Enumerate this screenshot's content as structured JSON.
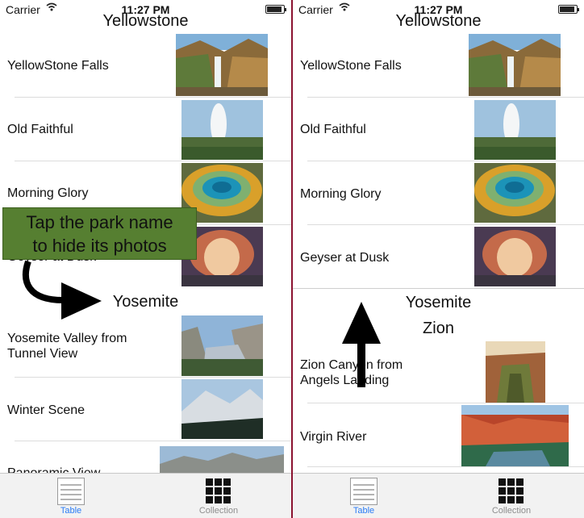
{
  "status_bar": {
    "carrier": "Carrier",
    "time": "11:27 PM"
  },
  "left": {
    "sections": [
      {
        "title": "Yellowstone",
        "items": [
          {
            "label": "YellowStone Falls"
          },
          {
            "label": "Old Faithful"
          },
          {
            "label": "Morning Glory"
          },
          {
            "label": "Geyser at Dusk"
          }
        ]
      },
      {
        "title": "Yosemite",
        "items": [
          {
            "label": "Yosemite Valley from",
            "label2": "Tunnel View"
          },
          {
            "label": "Winter Scene"
          },
          {
            "label": "Panoramic View"
          }
        ]
      }
    ],
    "callout": {
      "line1": "Tap the park name",
      "line2": "to hide its photos"
    }
  },
  "right": {
    "sections": [
      {
        "title": "Yellowstone",
        "items": [
          {
            "label": "YellowStone Falls"
          },
          {
            "label": "Old Faithful"
          },
          {
            "label": "Morning Glory"
          },
          {
            "label": "Geyser at Dusk"
          }
        ]
      },
      {
        "title": "Yosemite",
        "items": []
      },
      {
        "title": "Zion",
        "items": [
          {
            "label": "Zion Canyon from",
            "label2": "Angels Landing"
          },
          {
            "label": "Virgin River"
          }
        ]
      }
    ]
  },
  "tabs": [
    {
      "label": "Table",
      "icon": "list-icon",
      "active": true
    },
    {
      "label": "Collection",
      "icon": "grid-icon",
      "active": false
    }
  ],
  "colors": {
    "accent": "#2a7cf6",
    "callout_bg": "#567f31",
    "divider": "#8a1330"
  }
}
